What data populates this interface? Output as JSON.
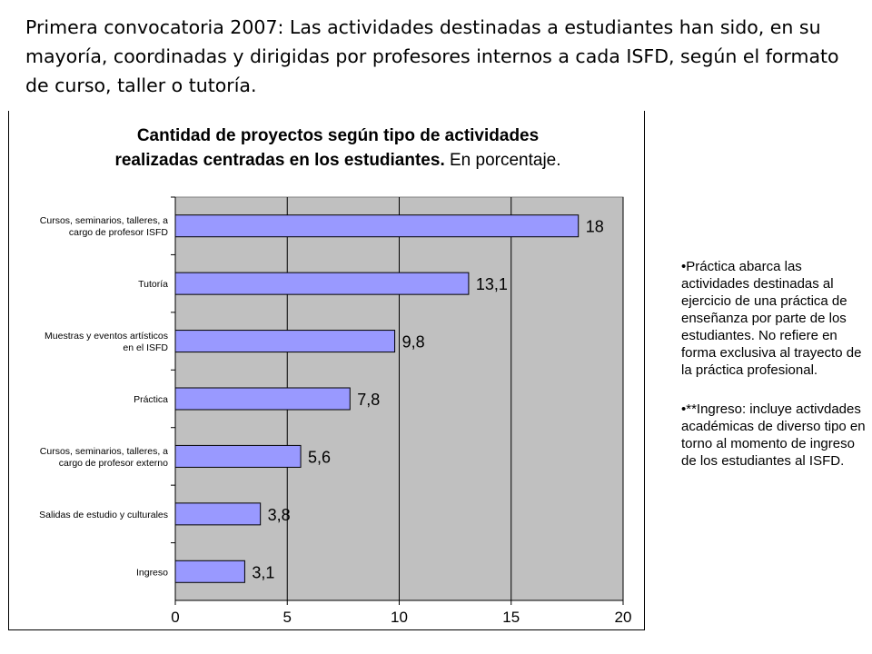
{
  "heading": "Primera convocatoria 2007: Las actividades destinadas a estudiantes han sido, en su mayoría, coordinadas y dirigidas por profesores internos a cada ISFD, según el formato de curso, taller o tutoría.",
  "notes": [
    "•Práctica abarca las actividades destinadas al ejercicio de una práctica de enseñanza por parte de los estudiantes. No refiere en forma exclusiva al trayecto de la práctica profesional.",
    "•**Ingreso: incluye activdades académicas de diverso tipo en torno al momento de ingreso de los estudiantes al ISFD."
  ],
  "colors": {
    "bar": "#9999ff",
    "plot_bg": "#c0c0c0",
    "gridline": "#000000"
  },
  "chart_data": {
    "type": "bar",
    "orientation": "horizontal",
    "title_lines": [
      "Cantidad de proyectos según tipo de actividades",
      "realizadas centradas en los estudiantes."
    ],
    "title_suffix": "En porcentaje.",
    "categories": [
      [
        "Cursos, seminarios, talleres, a",
        "cargo de profesor ISFD"
      ],
      [
        "Tutoría"
      ],
      [
        "Muestras y eventos artísticos",
        "en el ISFD"
      ],
      [
        "Práctica"
      ],
      [
        "Cursos, seminarios, talleres, a",
        "cargo de profesor externo"
      ],
      [
        "Salidas de estudio y culturales"
      ],
      [
        "Ingreso"
      ]
    ],
    "values": [
      18,
      13.1,
      9.8,
      7.8,
      5.6,
      3.8,
      3.1
    ],
    "value_labels": [
      "18",
      "13,1",
      "9,8",
      "7,8",
      "5,6",
      "3,8",
      "3,1"
    ],
    "xlim": [
      0,
      20
    ],
    "xticks": [
      0,
      5,
      10,
      15,
      20
    ],
    "grid": true,
    "legend": "none"
  }
}
